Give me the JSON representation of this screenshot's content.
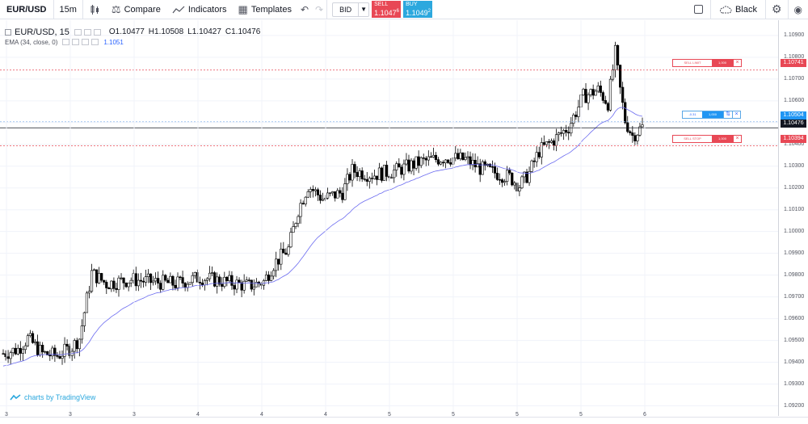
{
  "toolbar": {
    "symbol": "EUR/USD",
    "interval": "15m",
    "compare_label": "Compare",
    "indicators_label": "Indicators",
    "templates_label": "Templates",
    "bid_label": "BID",
    "sell_label": "SELL",
    "sell_price": "1.1047",
    "sell_price_sup": "6",
    "buy_label": "BUY",
    "buy_price": "1.1049",
    "buy_price_sup": "2",
    "theme_label": "Black"
  },
  "legend": {
    "title": "EUR/USD, 15",
    "open": "O1.10477",
    "high": "H1.10508",
    "low": "L1.10427",
    "close": "C1.10476",
    "ema_label": "EMA (34, close, 0)",
    "ema_value": "1.1051"
  },
  "price_axis": {
    "labels": [
      "1.10900",
      "1.10800",
      "1.10700",
      "1.10600",
      "1.10500",
      "1.10400",
      "1.10300",
      "1.10200",
      "1.10100",
      "1.10000",
      "1.09900",
      "1.09800",
      "1.09700",
      "1.09600",
      "1.09500",
      "1.09400",
      "1.09300",
      "1.09200"
    ],
    "tags": {
      "sell_limit": "1.10741",
      "position": "1.10504",
      "last": "1.10476",
      "sell_stop": "1.10394"
    }
  },
  "time_axis": {
    "labels": [
      "3",
      "3",
      "3",
      "4",
      "4",
      "4",
      "5",
      "5",
      "5",
      "5",
      "6"
    ]
  },
  "orders": {
    "sell_limit_label": "SELL LIMIT",
    "sell_limit_qty": "1,000",
    "position_label": "-0.31",
    "position_qty": "1,000",
    "sell_stop_label": "SELL STOP",
    "sell_stop_qty": "1,000"
  },
  "watermark": "charts by TradingView",
  "colors": {
    "sell": "#e84855",
    "buy": "#2ca8de",
    "ema": "#6c6cf0",
    "candle": "#000000"
  },
  "chart_data": {
    "type": "candlestick",
    "symbol": "EUR/USD",
    "interval": "15",
    "ylim": [
      1.0915,
      1.1097
    ],
    "x_labels": [
      "3",
      "3",
      "3",
      "4",
      "4",
      "4",
      "5",
      "5",
      "5",
      "5",
      "6"
    ],
    "anchors": [
      [
        0,
        1.0944
      ],
      [
        6,
        1.0946
      ],
      [
        10,
        1.0951
      ],
      [
        16,
        1.0944
      ],
      [
        22,
        1.0943
      ],
      [
        28,
        1.0947
      ],
      [
        31,
        1.0951
      ],
      [
        36,
        1.0981
      ],
      [
        42,
        1.0976
      ],
      [
        52,
        1.0978
      ],
      [
        60,
        1.0977
      ],
      [
        70,
        1.0976
      ],
      [
        80,
        1.0979
      ],
      [
        90,
        1.0977
      ],
      [
        100,
        1.0975
      ],
      [
        106,
        1.0977
      ],
      [
        110,
        1.0985
      ],
      [
        116,
        1.0992
      ],
      [
        120,
        1.101
      ],
      [
        124,
        1.1021
      ],
      [
        130,
        1.1015
      ],
      [
        138,
        1.1018
      ],
      [
        142,
        1.1028
      ],
      [
        150,
        1.1026
      ],
      [
        160,
        1.1028
      ],
      [
        170,
        1.1032
      ],
      [
        180,
        1.1034
      ],
      [
        188,
        1.1033
      ],
      [
        194,
        1.1029
      ],
      [
        200,
        1.1027
      ],
      [
        206,
        1.1025
      ],
      [
        210,
        1.1021
      ],
      [
        214,
        1.1027
      ],
      [
        218,
        1.1037
      ],
      [
        224,
        1.1042
      ],
      [
        230,
        1.1048
      ],
      [
        236,
        1.1062
      ],
      [
        242,
        1.1065
      ],
      [
        246,
        1.1059
      ],
      [
        249,
        1.1082
      ],
      [
        251,
        1.1065
      ],
      [
        253,
        1.1051
      ],
      [
        256,
        1.1044
      ],
      [
        260,
        1.1048
      ]
    ],
    "ema_period": 34
  }
}
